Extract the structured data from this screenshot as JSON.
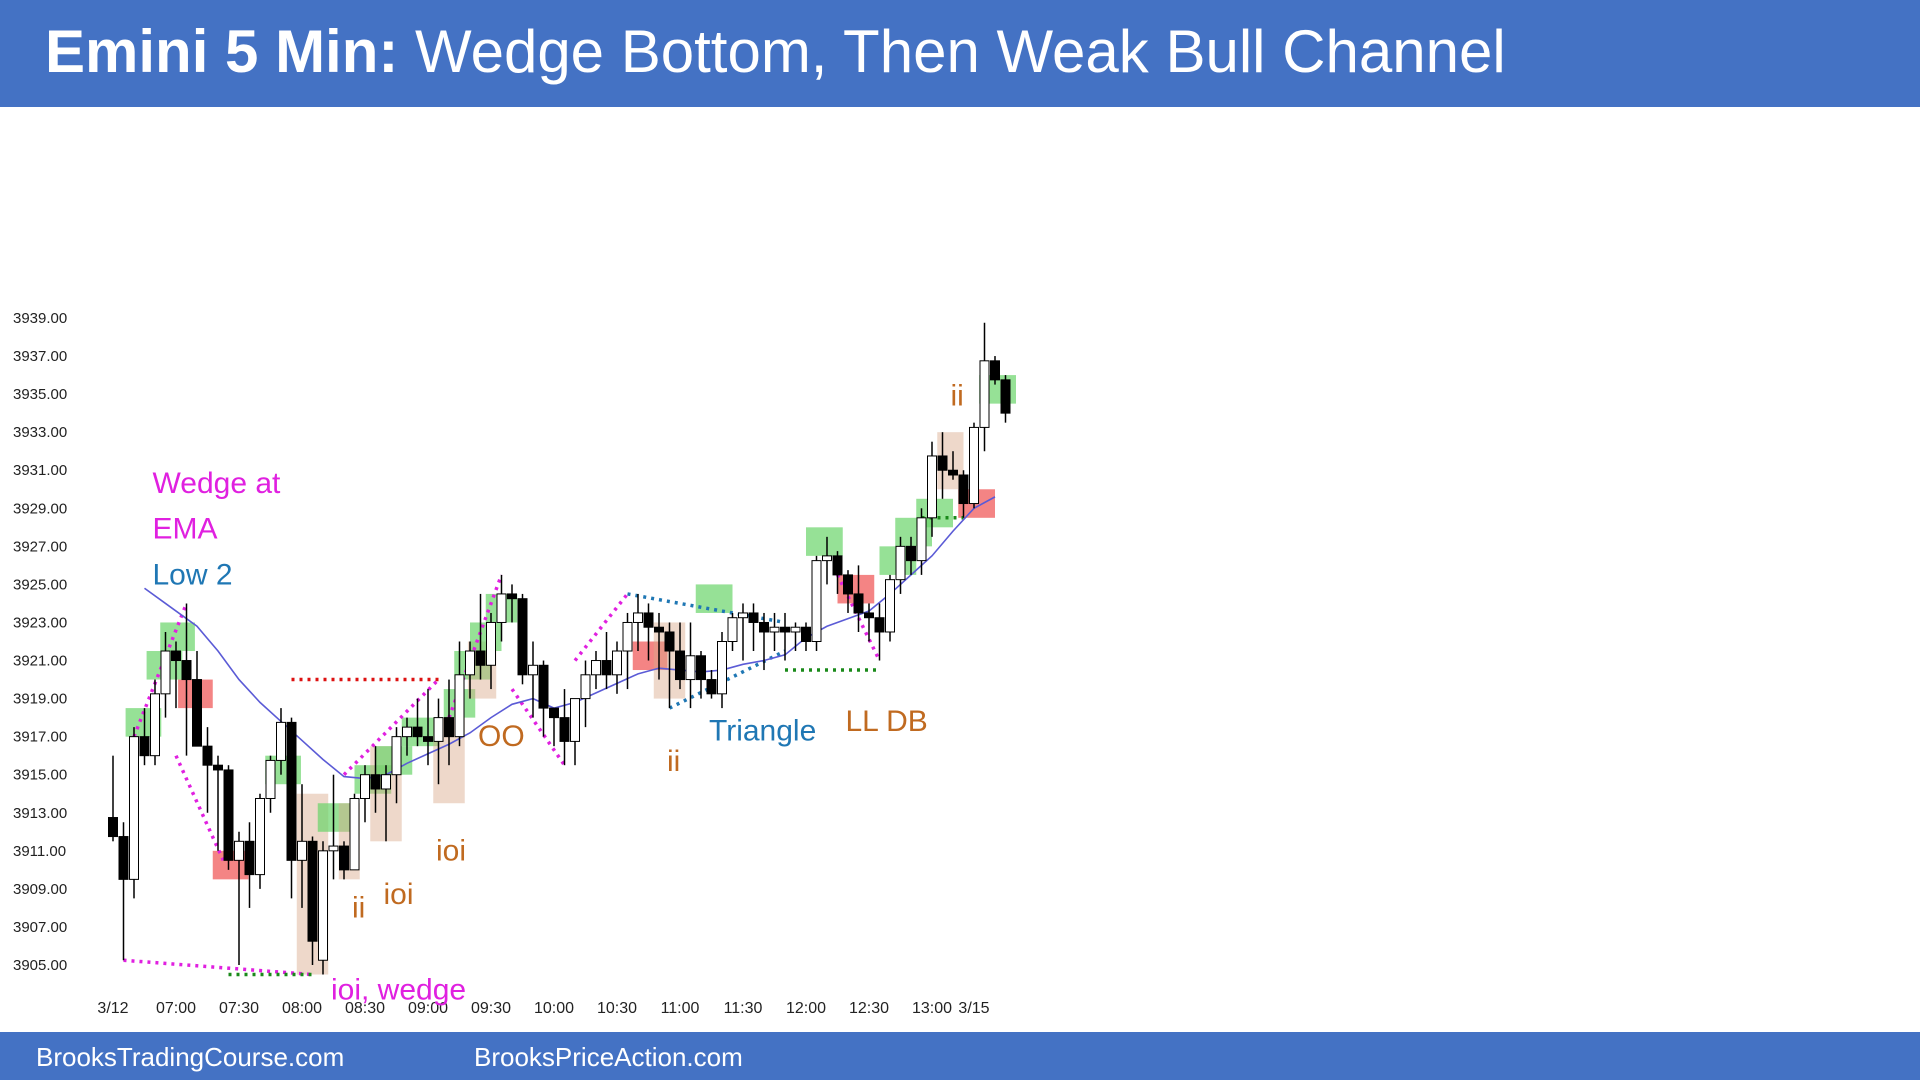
{
  "header": {
    "title_bold": "Emini 5 Min:",
    "title_rest": " Wedge Bottom, Then Weak Bull Channel"
  },
  "footer": {
    "link1": "BrooksTradingCourse.com",
    "link2": "BrooksPriceAction.com"
  },
  "colors": {
    "banner": "#4472c4",
    "ema": "#5b5bd6",
    "bull_bar": "#ffffff",
    "bear_bar": "#000000",
    "green_zone": "#6ad46a",
    "red_zone": "#f05050",
    "tan_zone": "#d9a98a",
    "magenta": "#e020e0",
    "teal": "#1f77b4",
    "orange": "#c06a20",
    "red_dotted": "#dd1111",
    "green_dotted": "#1a8a1a"
  },
  "chart_data": {
    "type": "candlestick",
    "y_ticks": [
      "3939.00",
      "3937.00",
      "3935.00",
      "3933.00",
      "3931.00",
      "3929.00",
      "3927.00",
      "3925.00",
      "3923.00",
      "3921.00",
      "3919.00",
      "3917.00",
      "3915.00",
      "3913.00",
      "3911.00",
      "3909.00",
      "3907.00",
      "3905.00"
    ],
    "y_tick_values": [
      3939,
      3937,
      3935,
      3933,
      3931,
      3929,
      3927,
      3925,
      3923,
      3921,
      3919,
      3917,
      3915,
      3913,
      3911,
      3909,
      3907,
      3905
    ],
    "x_ticks": [
      {
        "label": "3/12",
        "bar": 0
      },
      {
        "label": "07:00",
        "bar": 6
      },
      {
        "label": "07:30",
        "bar": 12
      },
      {
        "label": "08:00",
        "bar": 18
      },
      {
        "label": "08:30",
        "bar": 24
      },
      {
        "label": "09:00",
        "bar": 30
      },
      {
        "label": "09:30",
        "bar": 36
      },
      {
        "label": "10:00",
        "bar": 42
      },
      {
        "label": "10:30",
        "bar": 48
      },
      {
        "label": "11:00",
        "bar": 54
      },
      {
        "label": "11:30",
        "bar": 60
      },
      {
        "label": "12:00",
        "bar": 66
      },
      {
        "label": "12:30",
        "bar": 72
      },
      {
        "label": "13:00",
        "bar": 78
      },
      {
        "label": "3/15",
        "bar": 82
      }
    ],
    "ylim": [
      3904,
      3940
    ],
    "bars": [
      [
        3912.75,
        3916.0,
        3911.5,
        3911.75
      ],
      [
        3911.75,
        3912.5,
        3905.25,
        3909.5
      ],
      [
        3909.5,
        3917.5,
        3908.5,
        3917.0
      ],
      [
        3917.0,
        3918.5,
        3915.5,
        3916.0
      ],
      [
        3916.0,
        3920.0,
        3915.5,
        3919.25
      ],
      [
        3919.25,
        3922.5,
        3918.0,
        3921.5
      ],
      [
        3921.5,
        3922.0,
        3918.5,
        3921.0
      ],
      [
        3921.0,
        3924.0,
        3916.0,
        3920.0
      ],
      [
        3920.0,
        3921.5,
        3917.5,
        3916.5
      ],
      [
        3916.5,
        3917.5,
        3913.0,
        3915.5
      ],
      [
        3915.5,
        3916.0,
        3911.0,
        3915.25
      ],
      [
        3915.25,
        3915.5,
        3910.0,
        3910.5
      ],
      [
        3910.5,
        3912.0,
        3905.0,
        3911.5
      ],
      [
        3911.5,
        3912.5,
        3908.0,
        3909.75
      ],
      [
        3909.75,
        3914.0,
        3909.0,
        3913.75
      ],
      [
        3913.75,
        3916.0,
        3913.0,
        3915.75
      ],
      [
        3915.75,
        3918.5,
        3915.0,
        3917.75
      ],
      [
        3917.75,
        3918.0,
        3908.5,
        3910.5
      ],
      [
        3910.5,
        3914.5,
        3908.0,
        3911.5
      ],
      [
        3911.5,
        3911.75,
        3905.0,
        3906.25
      ],
      [
        3905.25,
        3911.5,
        3904.5,
        3911.0
      ],
      [
        3911.0,
        3915.0,
        3909.5,
        3911.25
      ],
      [
        3911.25,
        3911.5,
        3909.5,
        3910.0
      ],
      [
        3910.0,
        3914.0,
        3910.0,
        3913.75
      ],
      [
        3913.75,
        3915.5,
        3912.5,
        3915.0
      ],
      [
        3915.0,
        3916.5,
        3913.0,
        3914.25
      ],
      [
        3914.25,
        3915.5,
        3911.5,
        3915.0
      ],
      [
        3915.0,
        3917.5,
        3913.5,
        3917.0
      ],
      [
        3917.0,
        3918.0,
        3916.0,
        3917.5
      ],
      [
        3917.5,
        3919.0,
        3916.5,
        3917.0
      ],
      [
        3917.0,
        3919.5,
        3915.5,
        3916.75
      ],
      [
        3916.75,
        3919.0,
        3914.5,
        3918.0
      ],
      [
        3918.0,
        3920.0,
        3915.5,
        3917.0
      ],
      [
        3917.0,
        3922.0,
        3916.5,
        3920.25
      ],
      [
        3920.25,
        3922.0,
        3919.0,
        3921.5
      ],
      [
        3921.5,
        3924.5,
        3920.0,
        3920.75
      ],
      [
        3920.75,
        3923.5,
        3919.5,
        3923.0
      ],
      [
        3923.0,
        3925.5,
        3922.0,
        3924.5
      ],
      [
        3924.5,
        3925.0,
        3923.0,
        3924.25
      ],
      [
        3924.25,
        3924.5,
        3919.75,
        3920.25
      ],
      [
        3920.25,
        3922.0,
        3918.0,
        3920.75
      ],
      [
        3920.75,
        3921.0,
        3917.0,
        3918.5
      ],
      [
        3918.5,
        3918.5,
        3916.5,
        3918.0
      ],
      [
        3918.0,
        3919.5,
        3915.5,
        3916.75
      ],
      [
        3916.75,
        3919.0,
        3915.5,
        3919.0
      ],
      [
        3919.0,
        3921.0,
        3917.5,
        3920.25
      ],
      [
        3920.25,
        3921.5,
        3919.5,
        3921.0
      ],
      [
        3921.0,
        3922.5,
        3919.5,
        3920.25
      ],
      [
        3920.25,
        3922.0,
        3919.25,
        3921.5
      ],
      [
        3921.5,
        3923.5,
        3919.5,
        3923.0
      ],
      [
        3923.0,
        3924.5,
        3921.5,
        3923.5
      ],
      [
        3923.5,
        3924.0,
        3921.0,
        3922.75
      ],
      [
        3922.75,
        3923.5,
        3920.0,
        3922.5
      ],
      [
        3922.5,
        3923.0,
        3918.5,
        3921.5
      ],
      [
        3921.5,
        3923.0,
        3919.5,
        3920.0
      ],
      [
        3920.0,
        3923.0,
        3918.5,
        3921.25
      ],
      [
        3921.25,
        3921.5,
        3919.0,
        3920.0
      ],
      [
        3920.0,
        3920.5,
        3919.0,
        3919.25
      ],
      [
        3919.25,
        3922.5,
        3918.5,
        3922.0
      ],
      [
        3922.0,
        3923.5,
        3921.5,
        3923.25
      ],
      [
        3923.25,
        3924.0,
        3921.0,
        3923.5
      ],
      [
        3923.5,
        3924.0,
        3921.5,
        3923.0
      ],
      [
        3923.0,
        3923.5,
        3920.5,
        3922.5
      ],
      [
        3922.5,
        3923.5,
        3921.5,
        3922.75
      ],
      [
        3922.75,
        3923.5,
        3921.0,
        3922.5
      ],
      [
        3922.5,
        3923.0,
        3921.5,
        3922.75
      ],
      [
        3922.75,
        3923.0,
        3921.5,
        3922.0
      ],
      [
        3922.0,
        3926.5,
        3921.5,
        3926.25
      ],
      [
        3926.25,
        3927.5,
        3925.0,
        3926.5
      ],
      [
        3926.5,
        3926.75,
        3924.5,
        3925.5
      ],
      [
        3925.5,
        3925.75,
        3923.5,
        3924.5
      ],
      [
        3924.5,
        3926.0,
        3922.5,
        3923.5
      ],
      [
        3923.5,
        3924.0,
        3922.0,
        3923.25
      ],
      [
        3923.25,
        3924.0,
        3921.0,
        3922.5
      ],
      [
        3922.5,
        3925.5,
        3922.0,
        3925.25
      ],
      [
        3925.25,
        3927.5,
        3924.5,
        3927.0
      ],
      [
        3927.0,
        3927.5,
        3925.5,
        3926.25
      ],
      [
        3926.25,
        3929.0,
        3925.5,
        3928.5
      ],
      [
        3928.5,
        3932.5,
        3927.5,
        3931.75
      ],
      [
        3931.75,
        3933.0,
        3929.5,
        3931.0
      ],
      [
        3931.0,
        3932.0,
        3930.5,
        3930.75
      ],
      [
        3930.75,
        3931.0,
        3928.5,
        3929.25
      ],
      [
        3929.25,
        3933.5,
        3929.0,
        3933.25
      ],
      [
        3933.25,
        3938.75,
        3932.0,
        3936.75
      ],
      [
        3936.75,
        3937.0,
        3935.5,
        3935.75
      ],
      [
        3935.75,
        3936.0,
        3933.5,
        3934.0
      ]
    ],
    "ema": [
      [
        3,
        3924.8
      ],
      [
        5,
        3924.0
      ],
      [
        8,
        3922.8
      ],
      [
        10,
        3921.5
      ],
      [
        12,
        3920.0
      ],
      [
        14,
        3918.8
      ],
      [
        16,
        3917.8
      ],
      [
        18,
        3916.8
      ],
      [
        20,
        3915.8
      ],
      [
        22,
        3914.9
      ],
      [
        24,
        3914.8
      ],
      [
        26,
        3915.0
      ],
      [
        28,
        3915.6
      ],
      [
        30,
        3916.1
      ],
      [
        32,
        3916.6
      ],
      [
        34,
        3917.2
      ],
      [
        36,
        3918.0
      ],
      [
        38,
        3918.7
      ],
      [
        40,
        3919.0
      ],
      [
        42,
        3918.5
      ],
      [
        44,
        3918.8
      ],
      [
        46,
        3919.3
      ],
      [
        48,
        3919.8
      ],
      [
        50,
        3920.3
      ],
      [
        52,
        3920.6
      ],
      [
        54,
        3920.5
      ],
      [
        56,
        3920.4
      ],
      [
        58,
        3920.5
      ],
      [
        60,
        3920.8
      ],
      [
        62,
        3921.0
      ],
      [
        64,
        3921.3
      ],
      [
        66,
        3922.2
      ],
      [
        68,
        3922.8
      ],
      [
        70,
        3923.2
      ],
      [
        72,
        3923.6
      ],
      [
        74,
        3924.5
      ],
      [
        76,
        3925.5
      ],
      [
        78,
        3926.5
      ],
      [
        80,
        3927.8
      ],
      [
        82,
        3929.0
      ],
      [
        84,
        3929.6
      ]
    ],
    "zones": [
      {
        "color": "green",
        "x0": 1.2,
        "x1": 4.6,
        "y_top": 3918.5,
        "y_bot": 3917.0
      },
      {
        "color": "green",
        "x0": 3.2,
        "x1": 6.6,
        "y_top": 3921.5,
        "y_bot": 3920.0
      },
      {
        "color": "green",
        "x0": 4.5,
        "x1": 7.8,
        "y_top": 3923.0,
        "y_bot": 3921.5
      },
      {
        "color": "red",
        "x0": 6.2,
        "x1": 9.5,
        "y_top": 3920.0,
        "y_bot": 3918.5
      },
      {
        "color": "red",
        "x0": 9.5,
        "x1": 12.9,
        "y_top": 3911.0,
        "y_bot": 3909.5
      },
      {
        "color": "green",
        "x0": 14.5,
        "x1": 17.9,
        "y_top": 3916.0,
        "y_bot": 3914.5
      },
      {
        "color": "tan",
        "x0": 17.5,
        "x1": 20.5,
        "y_top": 3914.0,
        "y_bot": 3904.5
      },
      {
        "color": "green",
        "x0": 19.5,
        "x1": 23.0,
        "y_top": 3913.5,
        "y_bot": 3912.0
      },
      {
        "color": "tan",
        "x0": 21.5,
        "x1": 23.5,
        "y_top": 3913.5,
        "y_bot": 3909.5
      },
      {
        "color": "green",
        "x0": 23.0,
        "x1": 26.5,
        "y_top": 3915.5,
        "y_bot": 3914.0
      },
      {
        "color": "tan",
        "x0": 24.5,
        "x1": 27.5,
        "y_top": 3916.5,
        "y_bot": 3911.5
      },
      {
        "color": "green",
        "x0": 25.0,
        "x1": 28.5,
        "y_top": 3916.5,
        "y_bot": 3915.0
      },
      {
        "color": "green",
        "x0": 27.5,
        "x1": 31.0,
        "y_top": 3918.0,
        "y_bot": 3916.5
      },
      {
        "color": "tan",
        "x0": 30.5,
        "x1": 33.5,
        "y_top": 3918.0,
        "y_bot": 3913.5
      },
      {
        "color": "green",
        "x0": 31.5,
        "x1": 34.5,
        "y_top": 3919.5,
        "y_bot": 3918.0
      },
      {
        "color": "green",
        "x0": 32.5,
        "x1": 36.0,
        "y_top": 3921.5,
        "y_bot": 3920.0
      },
      {
        "color": "tan",
        "x0": 33.8,
        "x1": 36.5,
        "y_top": 3922.0,
        "y_bot": 3919.0
      },
      {
        "color": "green",
        "x0": 34.0,
        "x1": 37.0,
        "y_top": 3923.0,
        "y_bot": 3921.5
      },
      {
        "color": "green",
        "x0": 35.5,
        "x1": 38.5,
        "y_top": 3924.5,
        "y_bot": 3923.0
      },
      {
        "color": "red",
        "x0": 49.5,
        "x1": 52.8,
        "y_top": 3922.0,
        "y_bot": 3920.5
      },
      {
        "color": "tan",
        "x0": 51.5,
        "x1": 54.5,
        "y_top": 3923.0,
        "y_bot": 3919.0
      },
      {
        "color": "green",
        "x0": 55.5,
        "x1": 59.0,
        "y_top": 3925.0,
        "y_bot": 3923.5
      },
      {
        "color": "green",
        "x0": 66.0,
        "x1": 69.5,
        "y_top": 3928.0,
        "y_bot": 3926.5
      },
      {
        "color": "red",
        "x0": 69.0,
        "x1": 72.5,
        "y_top": 3925.5,
        "y_bot": 3924.0
      },
      {
        "color": "green",
        "x0": 73.0,
        "x1": 76.5,
        "y_top": 3927.0,
        "y_bot": 3925.5
      },
      {
        "color": "green",
        "x0": 74.5,
        "x1": 78.0,
        "y_top": 3928.5,
        "y_bot": 3927.0
      },
      {
        "color": "green",
        "x0": 76.5,
        "x1": 80.0,
        "y_top": 3929.5,
        "y_bot": 3928.0
      },
      {
        "color": "tan",
        "x0": 78.5,
        "x1": 81.0,
        "y_top": 3933.0,
        "y_bot": 3930.0
      },
      {
        "color": "red",
        "x0": 80.5,
        "x1": 84.0,
        "y_top": 3930.0,
        "y_bot": 3928.5
      },
      {
        "color": "green",
        "x0": 82.5,
        "x1": 86.0,
        "y_top": 3936.0,
        "y_bot": 3934.5
      }
    ],
    "lines": [
      {
        "color": "magenta",
        "pts": [
          [
            1,
            3905.25
          ],
          [
            19,
            3904.5
          ]
        ]
      },
      {
        "color": "magenta",
        "pts": [
          [
            2,
            3917.0
          ],
          [
            7,
            3924.0
          ]
        ]
      },
      {
        "color": "magenta",
        "pts": [
          [
            6,
            3916.0
          ],
          [
            10.5,
            3910.5
          ]
        ]
      },
      {
        "color": "magenta",
        "pts": [
          [
            22,
            3915.0
          ],
          [
            31,
            3920.0
          ]
        ]
      },
      {
        "color": "magenta",
        "pts": [
          [
            32,
            3918.0
          ],
          [
            37,
            3925.5
          ]
        ]
      },
      {
        "color": "magenta",
        "pts": [
          [
            38,
            3919.5
          ],
          [
            43,
            3915.5
          ]
        ]
      },
      {
        "color": "magenta",
        "pts": [
          [
            44,
            3921.0
          ],
          [
            49,
            3924.5
          ]
        ]
      },
      {
        "color": "magenta",
        "pts": [
          [
            69,
            3925.5
          ],
          [
            73,
            3921.0
          ]
        ]
      },
      {
        "color": "teal",
        "pts": [
          [
            49,
            3924.5
          ],
          [
            64,
            3923.0
          ]
        ]
      },
      {
        "color": "teal",
        "pts": [
          [
            53,
            3918.5
          ],
          [
            64,
            3921.5
          ]
        ]
      },
      {
        "color": "red_dotted",
        "pts": [
          [
            17,
            3920.0
          ],
          [
            31,
            3920.0
          ]
        ]
      },
      {
        "color": "green_dotted",
        "pts": [
          [
            11,
            3904.5
          ],
          [
            19,
            3904.5
          ]
        ]
      },
      {
        "color": "green_dotted",
        "pts": [
          [
            64,
            3920.5
          ],
          [
            73,
            3920.5
          ]
        ]
      },
      {
        "color": "green_dotted",
        "pts": [
          [
            77,
            3928.5
          ],
          [
            81,
            3928.5
          ]
        ]
      }
    ],
    "annotations": [
      {
        "text": "Wedge at",
        "color": "magenta",
        "x": 3,
        "y": 3929.8
      },
      {
        "text": "EMA",
        "color": "magenta",
        "x": 3,
        "y": 3927.4
      },
      {
        "text": "Low 2",
        "color": "teal",
        "x": 3,
        "y": 3925.0
      },
      {
        "text": "ioi, wedge",
        "color": "magenta",
        "x": 20,
        "y": 3903.2
      },
      {
        "text": "ii",
        "color": "orange",
        "x": 22,
        "y": 3907.5
      },
      {
        "text": "ioi",
        "color": "orange",
        "x": 25,
        "y": 3908.2
      },
      {
        "text": "ioi",
        "color": "orange",
        "x": 30,
        "y": 3910.5
      },
      {
        "text": "OO",
        "color": "orange",
        "x": 34,
        "y": 3916.5
      },
      {
        "text": "ii",
        "color": "orange",
        "x": 52,
        "y": 3915.2
      },
      {
        "text": "Triangle",
        "color": "teal",
        "x": 56,
        "y": 3916.8
      },
      {
        "text": "LL DB",
        "color": "orange",
        "x": 69,
        "y": 3917.3
      },
      {
        "text": "ii",
        "color": "orange",
        "x": 79,
        "y": 3934.4
      }
    ]
  }
}
